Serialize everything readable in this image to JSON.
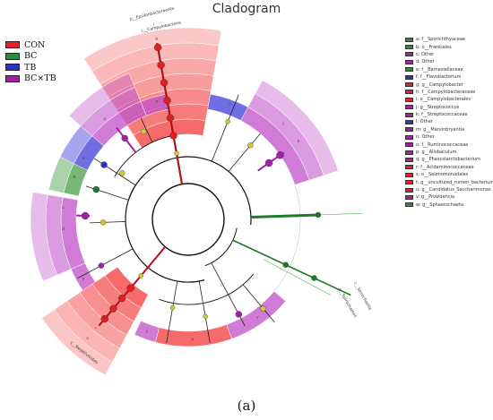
{
  "title": "Cladogram",
  "caption": "(a)",
  "groups": [
    {
      "key": "CON",
      "label": "CON",
      "color": "#e8202a"
    },
    {
      "key": "BC",
      "label": "BC",
      "color": "#2f8a3a"
    },
    {
      "key": "TB",
      "label": "TB",
      "color": "#3030c8"
    },
    {
      "key": "BCTB",
      "label": "BC×TB",
      "color": "#a020a8"
    }
  ],
  "taxa_legend": [
    {
      "letter": "a",
      "text": "a: f__Sporichthyaceae",
      "group": "BC"
    },
    {
      "letter": "b",
      "text": "b: o__Frankiales",
      "group": "BC"
    },
    {
      "letter": "c",
      "text": "c: Other",
      "group": "BCTB"
    },
    {
      "letter": "d",
      "text": "d: Other",
      "group": "BCTB"
    },
    {
      "letter": "e",
      "text": "e: f__Barnesiellaceae",
      "group": "BC"
    },
    {
      "letter": "f",
      "text": "f: f__Flavobacterium",
      "group": "TB"
    },
    {
      "letter": "g",
      "text": "g: g__Campylobacter",
      "group": "CON"
    },
    {
      "letter": "h",
      "text": "h: f__Campylobacteraceae",
      "group": "CON"
    },
    {
      "letter": "i",
      "text": "i: o__Campylobacterales",
      "group": "CON"
    },
    {
      "letter": "j",
      "text": "j: g__Streptococcus",
      "group": "BCTB"
    },
    {
      "letter": "k",
      "text": "k: f__Streptococcaceae",
      "group": "BCTB"
    },
    {
      "letter": "l",
      "text": "l: Other",
      "group": "TB"
    },
    {
      "letter": "m",
      "text": "m: g__Marvinbryantia",
      "group": "BCTB"
    },
    {
      "letter": "n",
      "text": "n: Other",
      "group": "BCTB"
    },
    {
      "letter": "o",
      "text": "o: f__Ruminococcaceae",
      "group": "BCTB"
    },
    {
      "letter": "p",
      "text": "p: g__Allobaculum",
      "group": "BCTB"
    },
    {
      "letter": "q",
      "text": "q: g__Phascolarctobacterium",
      "group": "BCTB"
    },
    {
      "letter": "r",
      "text": "r: f__Acidaminococcaceae",
      "group": "CON"
    },
    {
      "letter": "s",
      "text": "s: o__Selenomonadales",
      "group": "CON"
    },
    {
      "letter": "t",
      "text": "t: g__uncultured_rumen_bacterium",
      "group": "CON"
    },
    {
      "letter": "u",
      "text": "u: g__Candidatus_Saccharimonas",
      "group": "CON"
    },
    {
      "letter": "v",
      "text": "v: g__Providencia",
      "group": "BCTB"
    },
    {
      "letter": "w",
      "text": "w: g__Sphaerochaeta",
      "group": "BC"
    }
  ],
  "outer_labels": [
    {
      "text": "p__Epsilonbacteraeota"
    },
    {
      "text": "c__Campylobacteria"
    },
    {
      "text": "c__Negativicutes"
    },
    {
      "text": "p__Spirochaetes"
    },
    {
      "text": "c__Spirochaetia"
    }
  ]
}
